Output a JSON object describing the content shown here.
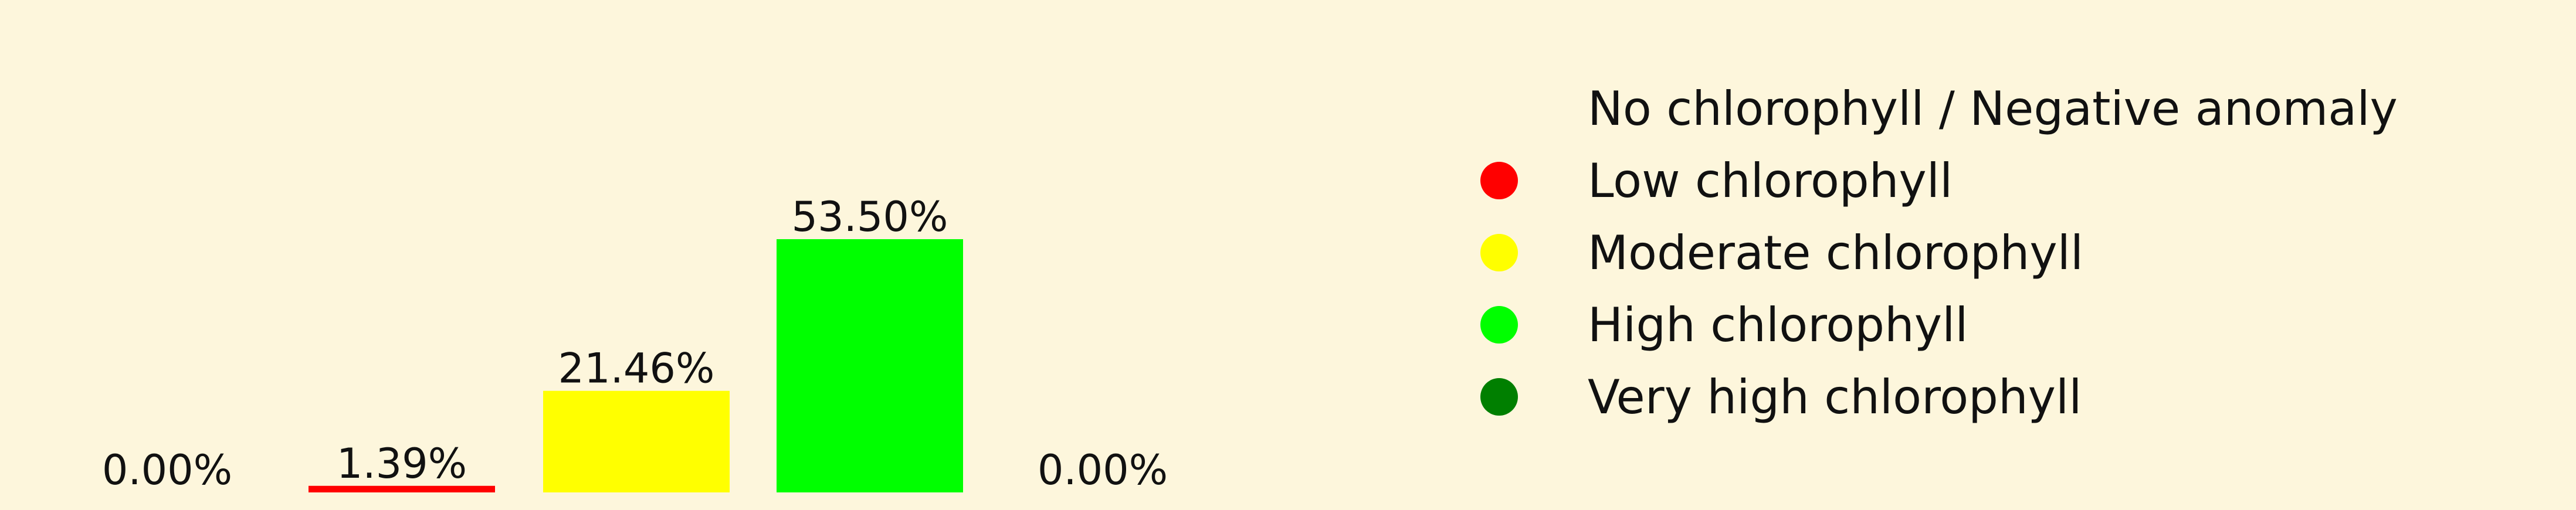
{
  "chart_data": {
    "type": "bar",
    "categories": [
      "No chlorophyll / Negative anomaly",
      "Low chlorophyll",
      "Moderate chlorophyll",
      "High chlorophyll",
      "Very high chlorophyll"
    ],
    "values": [
      0.0,
      1.39,
      21.46,
      53.5,
      0.0
    ],
    "value_labels": [
      "0.00%",
      "1.39%",
      "21.46%",
      "53.50%",
      "0.00%"
    ],
    "colors": [
      "#fdf6dc",
      "#ff0000",
      "#ffff00",
      "#00ff00",
      "#007f00"
    ],
    "ylim": [
      0,
      53.5
    ],
    "grid": false,
    "legend_position": "right",
    "title": "",
    "xlabel": "",
    "ylabel": ""
  }
}
